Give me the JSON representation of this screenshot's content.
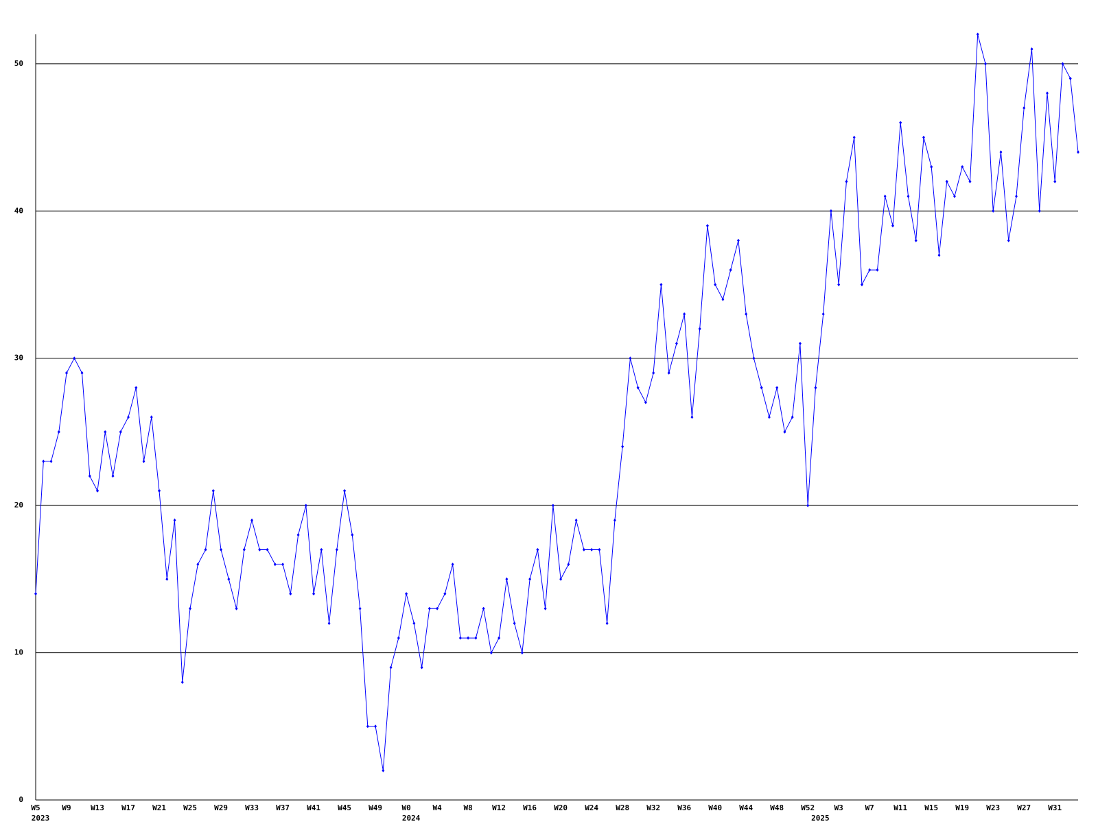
{
  "chart_data": {
    "type": "line",
    "categories": [
      "W5",
      null,
      null,
      null,
      "W9",
      null,
      null,
      null,
      "W13",
      null,
      null,
      null,
      "W17",
      null,
      null,
      null,
      "W21",
      null,
      null,
      null,
      "W25",
      null,
      null,
      null,
      "W29",
      null,
      null,
      null,
      "W33",
      null,
      null,
      null,
      "W37",
      null,
      null,
      null,
      "W41",
      null,
      null,
      null,
      "W45",
      null,
      null,
      null,
      "W49",
      null,
      null,
      null,
      "W0",
      null,
      null,
      null,
      "W4",
      null,
      null,
      null,
      "W8",
      null,
      null,
      null,
      "W12",
      null,
      null,
      null,
      "W16",
      null,
      null,
      null,
      "W20",
      null,
      null,
      null,
      "W24",
      null,
      null,
      null,
      "W28",
      null,
      null,
      null,
      "W32",
      null,
      null,
      null,
      "W36",
      null,
      null,
      null,
      "W40",
      null,
      null,
      null,
      "W44",
      null,
      null,
      null,
      "W48",
      null,
      null,
      null,
      "W52",
      null,
      null,
      null,
      "W3",
      null,
      null,
      null,
      "W7",
      null,
      null,
      null,
      "W11",
      null,
      null,
      null,
      "W15",
      null,
      null,
      null,
      "W19",
      null,
      null,
      null,
      "W23",
      null,
      null,
      null,
      "W27",
      null,
      null,
      null,
      "W31",
      null,
      null,
      null
    ],
    "year_labels": [
      "2023",
      null,
      null,
      null,
      null,
      null,
      null,
      null,
      null,
      null,
      null,
      null,
      null,
      null,
      null,
      null,
      null,
      null,
      null,
      null,
      null,
      null,
      null,
      null,
      null,
      null,
      null,
      null,
      null,
      null,
      null,
      null,
      null,
      null,
      null,
      null,
      null,
      null,
      null,
      null,
      null,
      null,
      null,
      null,
      null,
      null,
      null,
      null,
      "2024",
      null,
      null,
      null,
      null,
      null,
      null,
      null,
      null,
      null,
      null,
      null,
      null,
      null,
      null,
      null,
      null,
      null,
      null,
      null,
      null,
      null,
      null,
      null,
      null,
      null,
      null,
      null,
      null,
      null,
      null,
      null,
      null,
      null,
      null,
      null,
      null,
      null,
      null,
      null,
      null,
      null,
      null,
      null,
      null,
      null,
      null,
      null,
      null,
      null,
      null,
      null,
      null,
      "2025",
      null,
      null,
      null,
      null,
      null,
      null,
      null,
      null,
      null,
      null,
      null,
      null,
      null,
      null,
      null,
      null,
      null,
      null,
      null,
      null,
      null,
      null,
      null,
      null,
      null,
      null,
      null,
      null,
      null,
      null,
      null,
      null,
      null,
      null
    ],
    "series": [
      {
        "color": "#0000ff",
        "values": [
          14,
          23,
          23,
          25,
          29,
          30,
          29,
          22,
          21,
          25,
          22,
          25,
          26,
          28,
          23,
          26,
          21,
          15,
          19,
          8,
          13,
          16,
          17,
          21,
          17,
          15,
          13,
          17,
          19,
          17,
          17,
          16,
          16,
          14,
          18,
          20,
          14,
          17,
          12,
          17,
          21,
          18,
          13,
          5,
          5,
          2,
          9,
          11,
          14,
          12,
          9,
          13,
          13,
          14,
          16,
          11,
          11,
          11,
          13,
          10,
          11,
          15,
          12,
          10,
          15,
          17,
          13,
          20,
          15,
          16,
          19,
          17,
          17,
          17,
          12,
          19,
          24,
          30,
          28,
          27,
          29,
          35,
          29,
          31,
          33,
          26,
          32,
          39,
          35,
          34,
          36,
          38,
          33,
          30,
          28,
          26,
          28,
          25,
          26,
          31,
          20,
          28,
          33,
          40,
          35,
          42,
          45,
          35,
          36,
          36,
          41,
          39,
          46,
          41,
          38,
          45,
          43,
          37,
          42,
          41,
          43,
          42,
          52,
          50,
          40,
          44,
          38,
          41,
          47,
          51,
          40,
          48,
          42,
          50,
          49,
          44
        ]
      }
    ],
    "ylim": [
      0,
      52
    ],
    "yticks": [
      0,
      10,
      20,
      30,
      40,
      50
    ],
    "grid": true
  }
}
